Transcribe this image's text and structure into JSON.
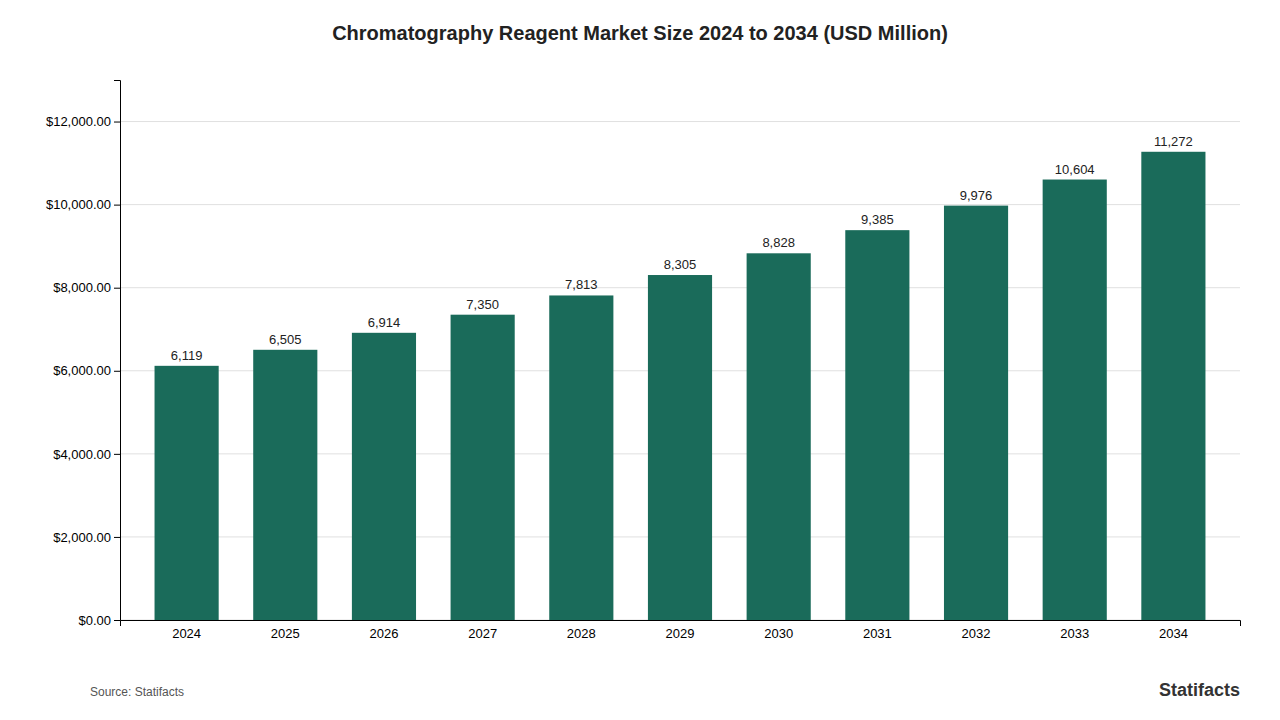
{
  "chart_data": {
    "type": "bar",
    "title": "Chromatography Reagent Market Size 2024 to 2034 (USD Million)",
    "categories": [
      "2024",
      "2025",
      "2026",
      "2027",
      "2028",
      "2029",
      "2030",
      "2031",
      "2032",
      "2033",
      "2034"
    ],
    "values": [
      6119,
      6505,
      6914,
      7350,
      7813,
      8305,
      8828,
      9385,
      9976,
      10604,
      11272
    ],
    "value_labels": [
      "6,119",
      "6,505",
      "6,914",
      "7,350",
      "7,813",
      "8,305",
      "8,828",
      "9,385",
      "9,976",
      "10,604",
      "11,272"
    ],
    "data_labels": true,
    "color": "#1a6b5a",
    "ylim": [
      0,
      13000
    ],
    "yticks": [
      {
        "value": 0,
        "label": "$0.00"
      },
      {
        "value": 2000,
        "label": "$2,000.00"
      },
      {
        "value": 4000,
        "label": "$4,000.00"
      },
      {
        "value": 6000,
        "label": "$6,000.00"
      },
      {
        "value": 8000,
        "label": "$8,000.00"
      },
      {
        "value": 10000,
        "label": "$10,000.00"
      },
      {
        "value": 12000,
        "label": "$12,000.00"
      }
    ],
    "grid": true,
    "annotations": [
      "Source: Statifacts",
      "Statifacts"
    ]
  }
}
